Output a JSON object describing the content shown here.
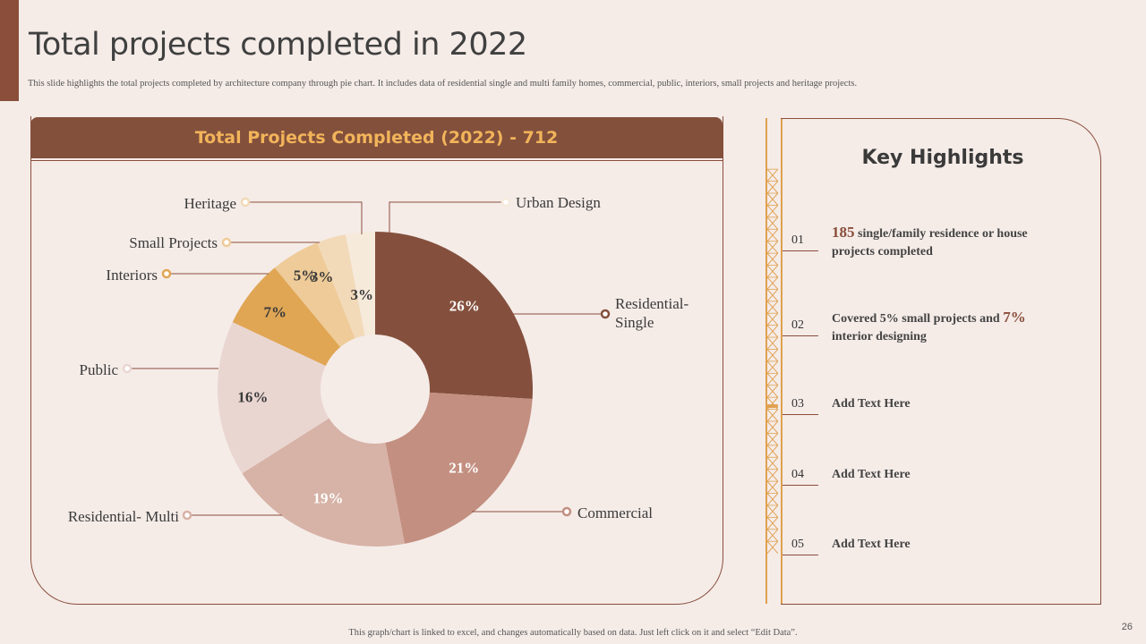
{
  "slide": {
    "title": "Total projects completed in 2022",
    "subtitle": "This slide highlights the total projects completed by architecture company through pie chart. It includes data of residential single and multi family homes, commercial, public, interiors, small projects and heritage projects.",
    "footer": "This graph/chart is linked to excel, and changes automatically based on data. Just left click on it and select “Edit Data”.",
    "page_number": "26"
  },
  "chart_header": "Total Projects Completed (2022) - 712",
  "chart_data": {
    "type": "pie",
    "title": "Total Projects Completed (2022) - 712",
    "categories": [
      "Residential-Single",
      "Commercial",
      "Residential- Multi",
      "Public",
      "Interiors",
      "Small Projects",
      "Heritage",
      "Urban Design"
    ],
    "category_lines": [
      [
        "Residential-",
        "Single"
      ],
      [
        "Commercial"
      ],
      [
        "Residential- Multi"
      ],
      [
        "Public"
      ],
      [
        "Interiors"
      ],
      [
        "Small Projects"
      ],
      [
        "Heritage"
      ],
      [
        "Urban Design"
      ]
    ],
    "values": [
      26,
      21,
      19,
      16,
      7,
      5,
      3,
      3
    ],
    "value_labels": [
      "26%",
      "21%",
      "19%",
      "16%",
      "7%",
      "5%",
      "3%",
      "3%"
    ],
    "unit": "%",
    "colors": [
      "#84503d",
      "#c38f80",
      "#d7b2a6",
      "#ead6d1",
      "#e0a654",
      "#eecb98",
      "#f2d9b8",
      "#f6eadb"
    ],
    "label_colors": [
      "#ffffff",
      "#ffffff",
      "#ffffff",
      "#3a3a3a",
      "#3a3a3a",
      "#3a3a3a",
      "#3a3a3a",
      "#3a3a3a"
    ],
    "start_angle_deg": 0,
    "legend": "callouts"
  },
  "key_highlights": {
    "title": "Key Highlights",
    "items": [
      {
        "num": "01",
        "big": "185",
        "text": " single/family residence or house projects completed"
      },
      {
        "num": "02",
        "text": "Covered 5% small projects and ",
        "big": "7%",
        "text2": "interior designing"
      },
      {
        "num": "03",
        "text": "Add Text Here"
      },
      {
        "num": "04",
        "text": "Add Text Here"
      },
      {
        "num": "05",
        "text": "Add Text Here"
      }
    ]
  }
}
